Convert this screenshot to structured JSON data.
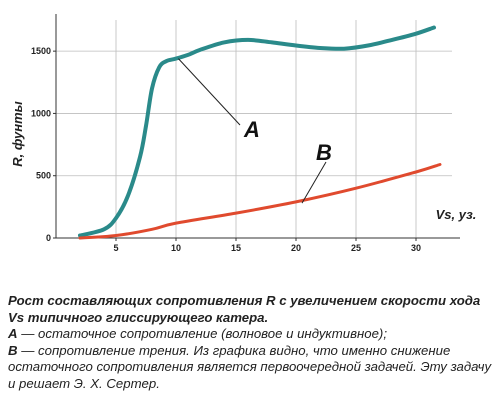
{
  "chart_data": {
    "type": "line",
    "ylabel": "R, фунты",
    "xlabel": "Vs, уз.",
    "xlim": [
      0,
      33
    ],
    "ylim": [
      0,
      1750
    ],
    "x_ticks": [
      5,
      10,
      15,
      20,
      25,
      30
    ],
    "y_ticks": [
      0,
      500,
      1000,
      1500
    ],
    "grid": true,
    "series": [
      {
        "name": "A",
        "color": "#2a8a8a",
        "points": [
          [
            2,
            20
          ],
          [
            4,
            70
          ],
          [
            5,
            160
          ],
          [
            6,
            340
          ],
          [
            7,
            650
          ],
          [
            7.5,
            900
          ],
          [
            8,
            1200
          ],
          [
            8.6,
            1370
          ],
          [
            9.2,
            1420
          ],
          [
            10,
            1440
          ],
          [
            11,
            1470
          ],
          [
            12,
            1510
          ],
          [
            14,
            1570
          ],
          [
            16,
            1590
          ],
          [
            18,
            1570
          ],
          [
            20,
            1545
          ],
          [
            22,
            1525
          ],
          [
            24,
            1520
          ],
          [
            26,
            1545
          ],
          [
            28,
            1590
          ],
          [
            30,
            1640
          ],
          [
            31.5,
            1690
          ]
        ]
      },
      {
        "name": "B",
        "color": "#e04a2e",
        "points": [
          [
            2,
            0
          ],
          [
            5,
            20
          ],
          [
            8,
            70
          ],
          [
            10,
            120
          ],
          [
            15,
            200
          ],
          [
            20,
            290
          ],
          [
            25,
            400
          ],
          [
            30,
            530
          ],
          [
            32,
            590
          ]
        ]
      }
    ]
  },
  "caption": {
    "title": "Рост составляющих сопротивления R с увеличением скорости хода Vs типичного глиссирующего катера.",
    "item_a_key": "A",
    "item_a_text": " — остаточное сопротивление (волновое и индуктивное);",
    "item_b_key": "B",
    "item_b_text": " — сопротивление трения. Из графика видно, что именно снижение остаточного сопротивления является первоочередной задачей. Эту задачу и решает Э. Х. Сертер."
  }
}
